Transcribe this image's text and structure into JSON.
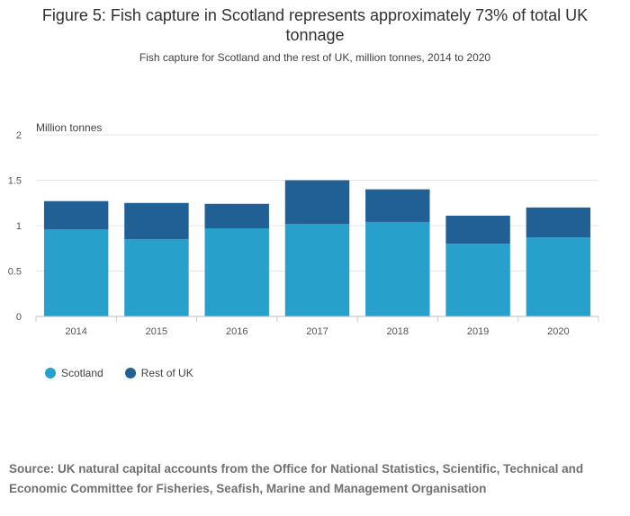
{
  "header": {
    "title": "Figure 5: Fish capture in Scotland represents approximately 73% of total UK tonnage",
    "subtitle": "Fish capture for Scotland and the rest of UK, million tonnes, 2014 to 2020"
  },
  "chart_data": {
    "type": "bar",
    "stacked": true,
    "categories": [
      "2014",
      "2015",
      "2016",
      "2017",
      "2018",
      "2019",
      "2020"
    ],
    "series": [
      {
        "name": "Scotland",
        "color": "#27a0cc",
        "values": [
          0.96,
          0.85,
          0.97,
          1.02,
          1.04,
          0.8,
          0.87
        ]
      },
      {
        "name": "Rest of UK",
        "color": "#206095",
        "values": [
          0.31,
          0.4,
          0.27,
          0.48,
          0.36,
          0.31,
          0.33
        ]
      }
    ],
    "ylabel": "Million tonnes",
    "yticks": [
      "0",
      "0.5",
      "1",
      "1.5",
      "2"
    ],
    "ylim": [
      0,
      2
    ],
    "grid": true,
    "legend_position": "bottom-left"
  },
  "footer": {
    "source": "Source: UK natural capital accounts from the Office for National Statistics, Scientific, Technical and Economic Committee for Fisheries, Seafish, Marine and Management Organisation"
  }
}
